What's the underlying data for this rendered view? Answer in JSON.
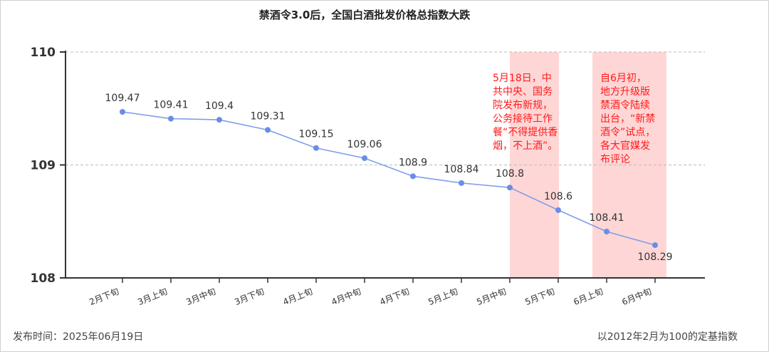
{
  "chart_data": {
    "type": "line",
    "title": "禁酒令3.0后，全国白酒批发价格总指数大跌",
    "categories": [
      "2月下旬",
      "3月上旬",
      "3月中旬",
      "3月下旬",
      "4月上旬",
      "4月中旬",
      "4月下旬",
      "5月上旬",
      "5月中旬",
      "5月下旬",
      "6月上旬",
      "6月中旬"
    ],
    "values": [
      109.47,
      109.41,
      109.4,
      109.31,
      109.15,
      109.06,
      108.9,
      108.84,
      108.8,
      108.6,
      108.41,
      108.29
    ],
    "data_labels": [
      "109.47",
      "109.41",
      "109.4",
      "109.31",
      "109.15",
      "109.06",
      "108.9",
      "108.84",
      "108.8",
      "108.6",
      "108.41",
      "108.29"
    ],
    "ylim": [
      108,
      110
    ],
    "yticks": [
      "108",
      "109",
      "110"
    ],
    "grid": true,
    "line_color": "#7f9fe8",
    "highlight_color": "#ffd6d6",
    "highlights": [
      {
        "from": "5月中旬",
        "to": "5月下旬",
        "note_lines": [
          "5月18日，中",
          "共中央、国务",
          "院发布新规，",
          "公务接待工作",
          "餐“不得提供香",
          "烟，不上酒”。"
        ]
      },
      {
        "from": "6月上旬",
        "to": "6月中旬",
        "note_lines": [
          "自6月初，",
          "地方升级版",
          "禁酒令陆续",
          "出台，“新禁",
          "酒令”试点，",
          "各大官媒发",
          "布评论"
        ]
      }
    ]
  },
  "footer": {
    "publish_time": "发布时间：2025年06月19日",
    "base_note": "以2012年2月为100的定基指数"
  }
}
